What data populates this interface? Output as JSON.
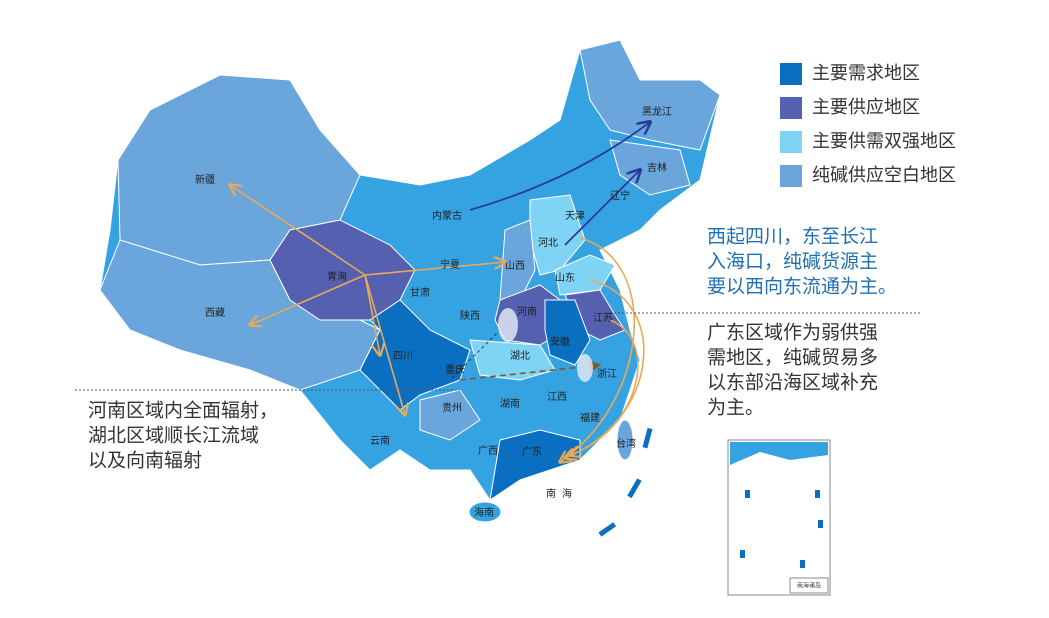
{
  "legend": [
    {
      "label": "主要需求地区",
      "color": "#0a6fc0"
    },
    {
      "label": "主要供应地区",
      "color": "#5560b0"
    },
    {
      "label": "主要供需双强地区",
      "color": "#7fd3f5"
    },
    {
      "label": "纯碱供应空白地区",
      "color": "#6aa6dc"
    }
  ],
  "provinces": [
    "新疆",
    "西藏",
    "青海",
    "四川",
    "内蒙古",
    "黑龙江",
    "吉林",
    "辽宁",
    "天津",
    "河北",
    "山西",
    "山东",
    "宁夏",
    "甘肃",
    "陕西",
    "河南",
    "江苏",
    "安徽",
    "湖北",
    "重庆",
    "浙江",
    "贵州",
    "湖南",
    "江西",
    "福建",
    "云南",
    "广西",
    "广东",
    "台湾",
    "海南"
  ],
  "sea_label": "南海",
  "inset_label": "南海诸岛",
  "annotations": [
    {
      "lines": [
        "西起四川，东至长江",
        "入海口，纯碱货源主",
        "要以西向东流通为主。"
      ]
    },
    {
      "lines": [
        "广东区域作为弱供强",
        "需地区，纯碱贸易多",
        "以东部沿海区域补充",
        "为主。"
      ]
    },
    {
      "lines": [
        "河南区域内全面辐射，",
        "湖北区域顺长江流域",
        "以及向南辐射"
      ]
    }
  ]
}
